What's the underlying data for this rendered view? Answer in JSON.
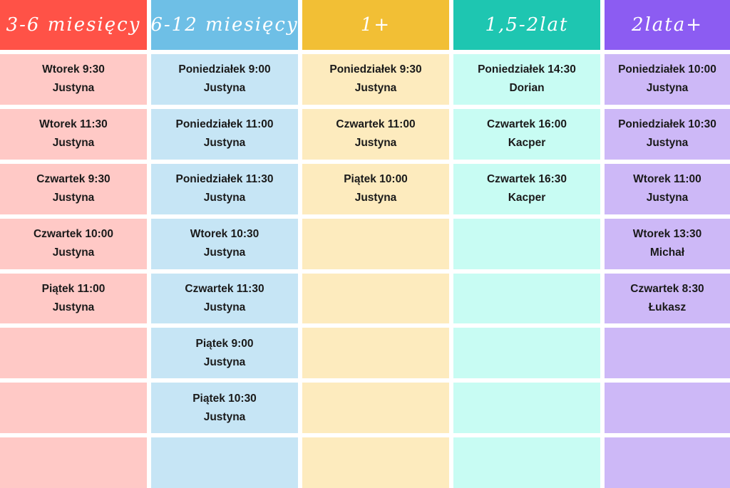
{
  "columns": [
    {
      "title": "3-6 miesięcy",
      "color": "#ff5247",
      "light": "#ffc9c6",
      "slots": [
        {
          "time": "Wtorek 9:30",
          "teacher": "Justyna"
        },
        {
          "time": "Wtorek 11:30",
          "teacher": "Justyna"
        },
        {
          "time": "Czwartek 9:30",
          "teacher": "Justyna"
        },
        {
          "time": "Czwartek 10:00",
          "teacher": "Justyna"
        },
        {
          "time": "Piątek 11:00",
          "teacher": "Justyna"
        },
        {
          "time": "",
          "teacher": ""
        },
        {
          "time": "",
          "teacher": ""
        },
        {
          "time": "",
          "teacher": ""
        }
      ]
    },
    {
      "title": "6-12 miesięcy",
      "color": "#6ebfe6",
      "light": "#c6e5f5",
      "slots": [
        {
          "time": "Poniedziałek 9:00",
          "teacher": "Justyna"
        },
        {
          "time": "Poniedziałek 11:00",
          "teacher": "Justyna"
        },
        {
          "time": "Poniedziałek 11:30",
          "teacher": "Justyna"
        },
        {
          "time": "Wtorek 10:30",
          "teacher": "Justyna"
        },
        {
          "time": "Czwartek 11:30",
          "teacher": "Justyna"
        },
        {
          "time": "Piątek 9:00",
          "teacher": "Justyna"
        },
        {
          "time": "Piątek 10:30",
          "teacher": "Justyna"
        },
        {
          "time": "",
          "teacher": ""
        }
      ]
    },
    {
      "title": "1+",
      "color": "#f2bf35",
      "light": "#fdebbe",
      "slots": [
        {
          "time": "Poniedziałek 9:30",
          "teacher": "Justyna"
        },
        {
          "time": "Czwartek 11:00",
          "teacher": "Justyna"
        },
        {
          "time": "Piątek 10:00",
          "teacher": "Justyna"
        },
        {
          "time": "",
          "teacher": ""
        },
        {
          "time": "",
          "teacher": ""
        },
        {
          "time": "",
          "teacher": ""
        },
        {
          "time": "",
          "teacher": ""
        },
        {
          "time": "",
          "teacher": ""
        }
      ]
    },
    {
      "title": "1,5-2lat",
      "color": "#1ec6b1",
      "light": "#c8fcf3",
      "slots": [
        {
          "time": "Poniedziałek 14:30",
          "teacher": "Dorian"
        },
        {
          "time": "Czwartek 16:00",
          "teacher": "Kacper"
        },
        {
          "time": "Czwartek 16:30",
          "teacher": "Kacper"
        },
        {
          "time": "",
          "teacher": ""
        },
        {
          "time": "",
          "teacher": ""
        },
        {
          "time": "",
          "teacher": ""
        },
        {
          "time": "",
          "teacher": ""
        },
        {
          "time": "",
          "teacher": ""
        }
      ]
    },
    {
      "title": "2lata+",
      "color": "#8c5cf2",
      "light": "#cdb8f7",
      "slots": [
        {
          "time": "Poniedziałek 10:00",
          "teacher": "Justyna"
        },
        {
          "time": "Poniedziałek 10:30",
          "teacher": "Justyna"
        },
        {
          "time": "Wtorek 11:00",
          "teacher": "Justyna"
        },
        {
          "time": "Wtorek 13:30",
          "teacher": "Michał"
        },
        {
          "time": "Czwartek 8:30",
          "teacher": "Łukasz"
        },
        {
          "time": "",
          "teacher": ""
        },
        {
          "time": "",
          "teacher": ""
        },
        {
          "time": "",
          "teacher": ""
        }
      ]
    }
  ]
}
